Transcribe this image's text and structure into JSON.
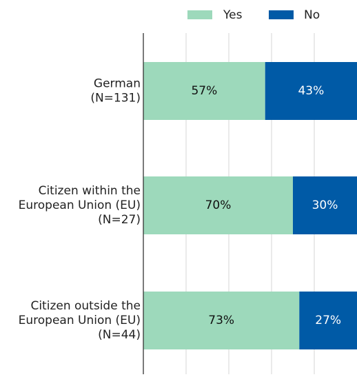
{
  "chart_data": {
    "type": "bar",
    "orientation": "horizontal",
    "stacked": true,
    "normalized_percent": true,
    "xlim": [
      0,
      100
    ],
    "grid": true,
    "legend_position": "top",
    "categories": [
      [
        "German",
        "(N=131)"
      ],
      [
        "Citizen within the",
        "European Union (EU)",
        "(N=27)"
      ],
      [
        "Citizen outside the",
        "European Union (EU)",
        "(N=44)"
      ]
    ],
    "series": [
      {
        "name": "Yes",
        "color": "#9dd9bb",
        "label_color": "#111111",
        "values": [
          57,
          70,
          73
        ],
        "labels": [
          "57%",
          "70%",
          "73%"
        ]
      },
      {
        "name": "No",
        "color": "#005aa6",
        "label_color": "#ffffff",
        "values": [
          43,
          30,
          27
        ],
        "labels": [
          "43%",
          "30%",
          "27%"
        ]
      }
    ]
  }
}
